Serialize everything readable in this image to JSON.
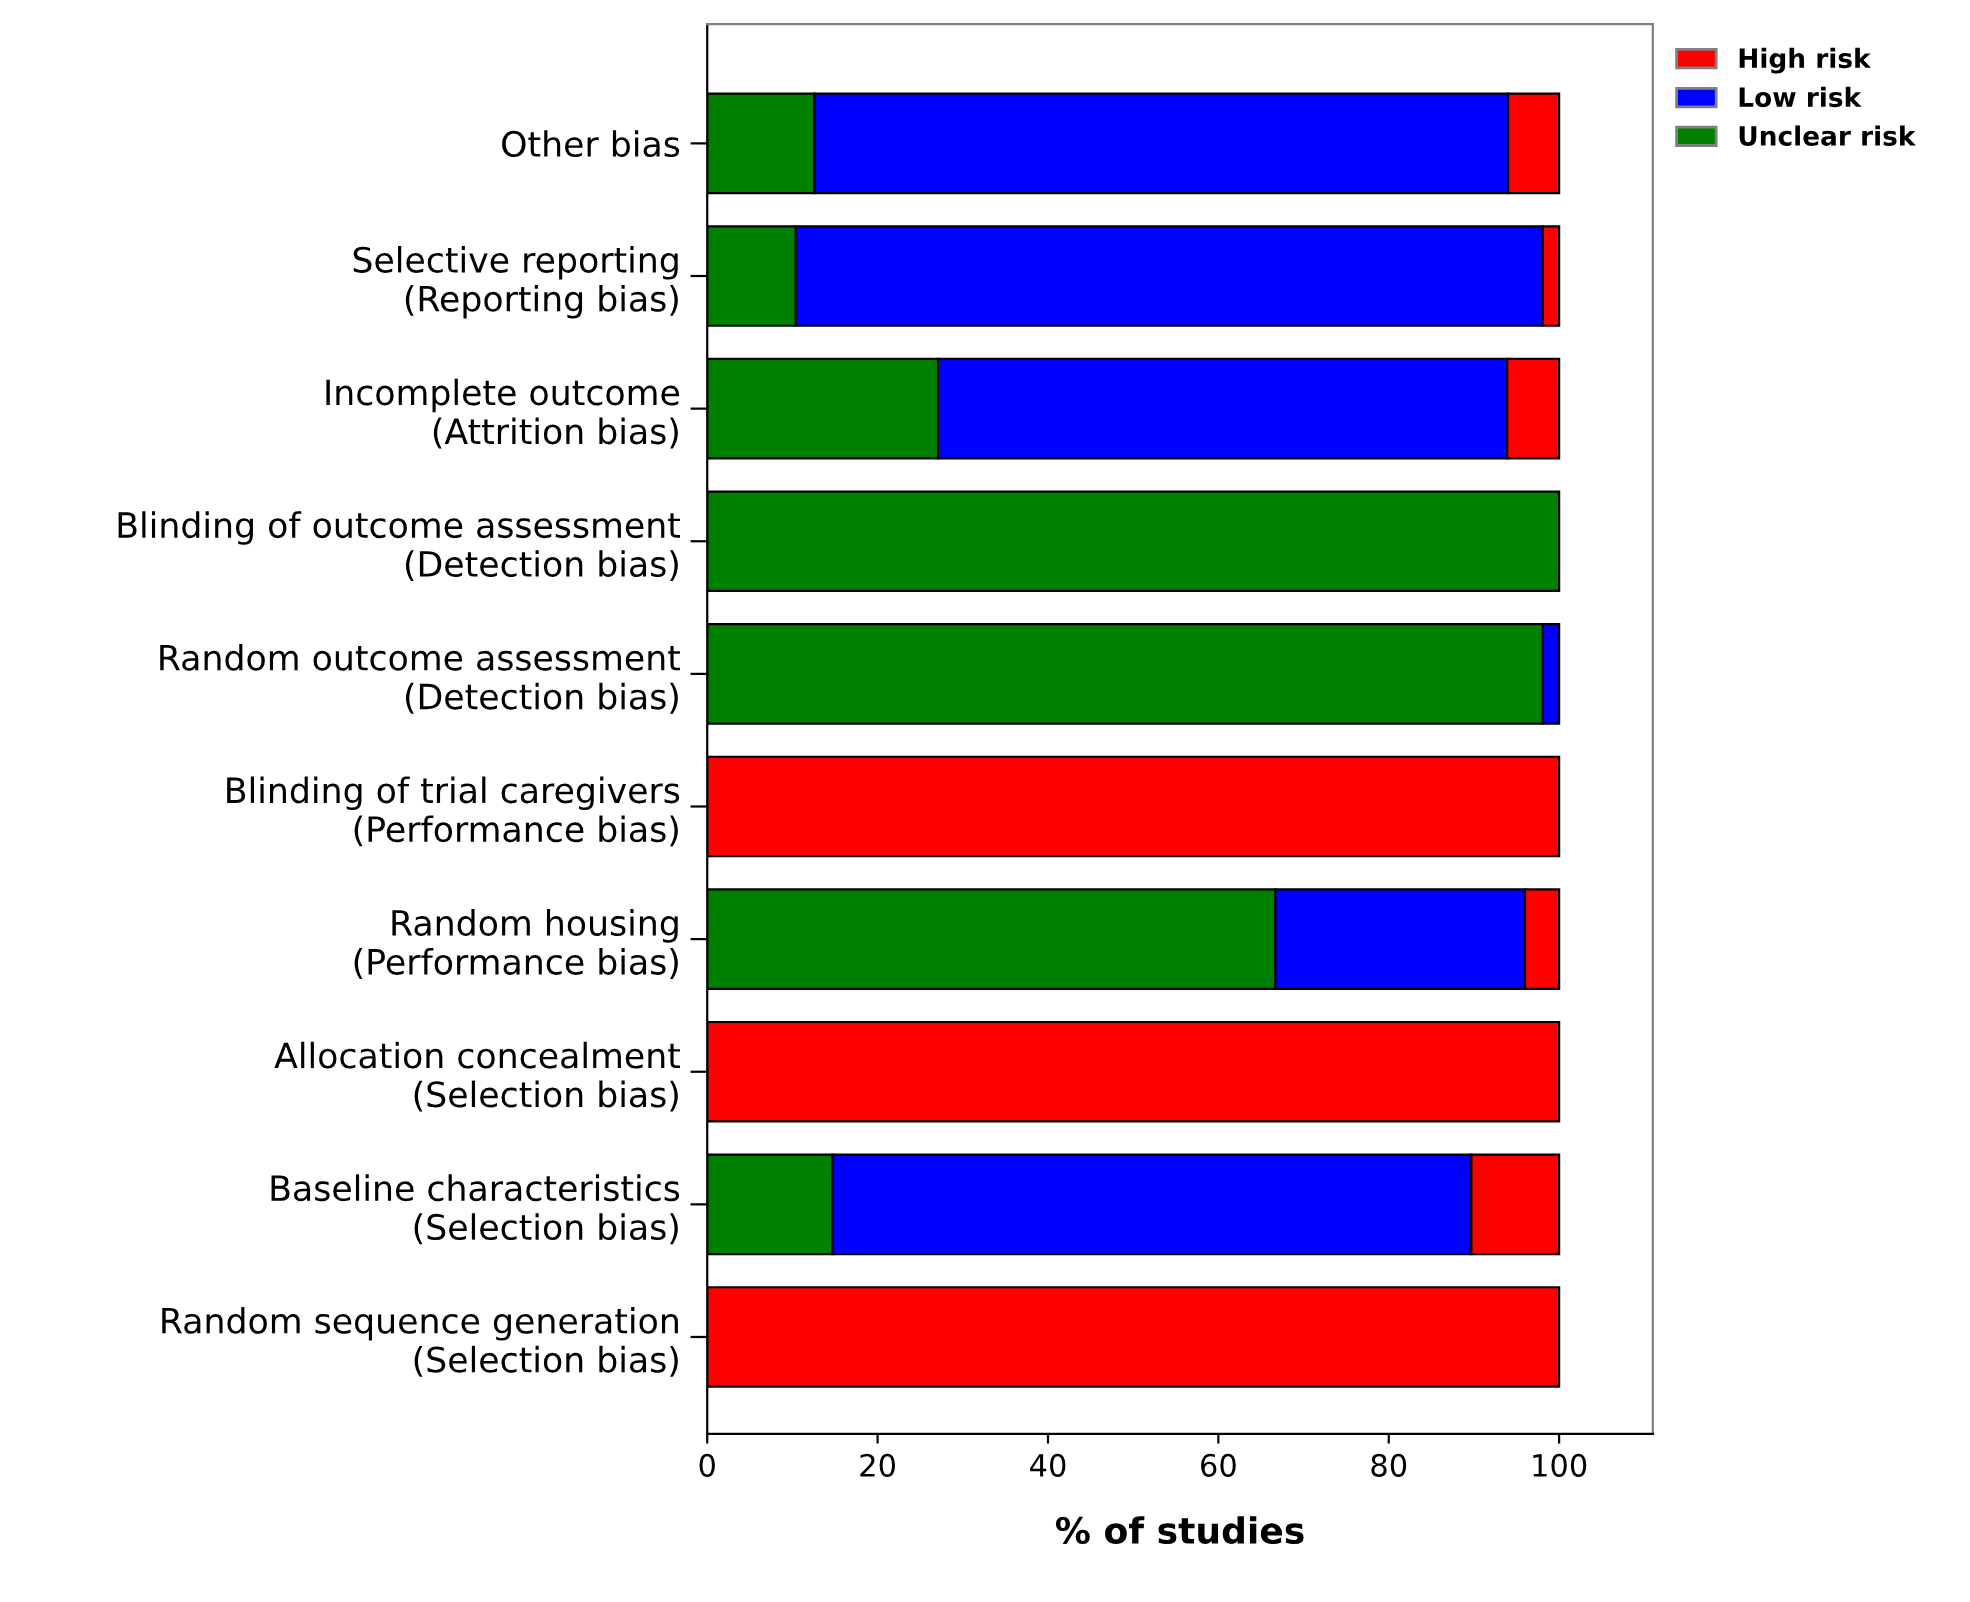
{
  "chart_data": {
    "type": "bar",
    "orientation": "horizontal",
    "stacked": true,
    "xlabel": "% of studies",
    "categories": [
      "Other bias",
      "Selective reporting\n(Reporting bias)",
      "Incomplete outcome\n(Attrition bias)",
      "Blinding of outcome assessment\n(Detection bias)",
      "Random outcome assessment\n(Detection bias)",
      "Blinding of trial caregivers\n(Performance bias)",
      "Random housing\n(Performance bias)",
      "Allocation concealment\n(Selection bias)",
      "Baseline characteristics\n(Selection bias)",
      "Random sequence generation\n(Selection bias)"
    ],
    "series": [
      {
        "name": "Unclear risk",
        "color": "#008000",
        "values": [
          12.6,
          10.4,
          27.1,
          100,
          98.1,
          null,
          66.7,
          null,
          14.7,
          null
        ]
      },
      {
        "name": "Low risk",
        "color": "#0000ff",
        "values": [
          81.4,
          87.7,
          66.8,
          null,
          1.9,
          null,
          29.3,
          null,
          75.0,
          null
        ]
      },
      {
        "name": "High risk",
        "color": "#ff0000",
        "values": [
          6.0,
          1.9,
          6.1,
          null,
          null,
          100,
          4.0,
          100,
          10.3,
          100
        ]
      }
    ],
    "xlim": [
      0,
      111
    ],
    "xticks": [
      0,
      20,
      40,
      60,
      80,
      100
    ],
    "grid": false,
    "legend": "top right"
  }
}
